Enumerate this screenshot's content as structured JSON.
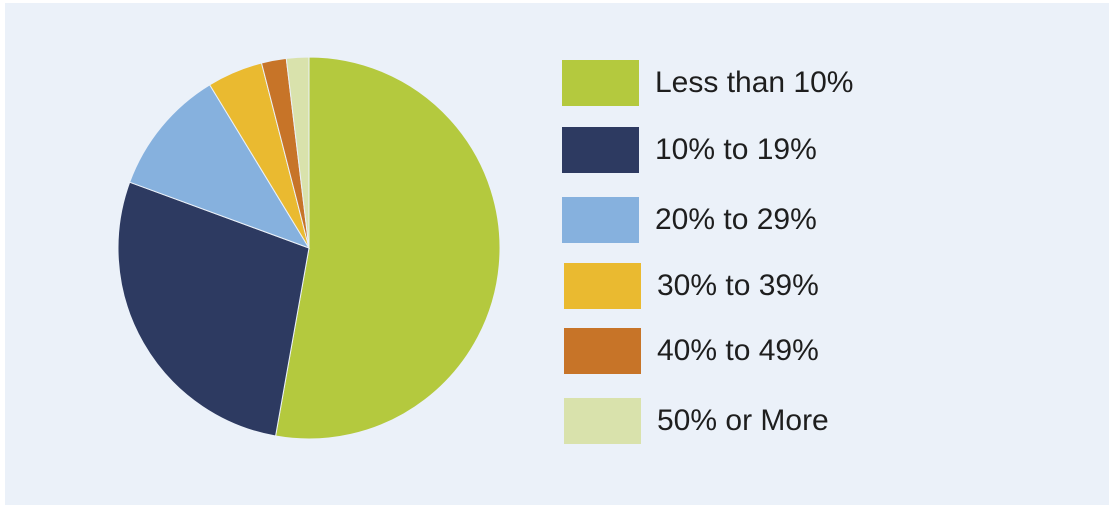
{
  "chart_data": {
    "type": "pie",
    "title": "",
    "slices": [
      {
        "label": "Less than 10%",
        "value": 52.8,
        "color": "#b4c93e"
      },
      {
        "label": "10% to 19%",
        "value": 27.8,
        "color": "#2d3a61"
      },
      {
        "label": "20% to 29%",
        "value": 10.7,
        "color": "#86b1de"
      },
      {
        "label": "30% to 39%",
        "value": 4.7,
        "color": "#eaba30"
      },
      {
        "label": "40% to 49%",
        "value": 2.1,
        "color": "#c77428"
      },
      {
        "label": "50% or More",
        "value": 1.9,
        "color": "#d9e2ac"
      }
    ],
    "start_angle": "12 o'clock",
    "direction": "clockwise",
    "legend_placement": "right",
    "background_color": "#ebf1f9"
  }
}
